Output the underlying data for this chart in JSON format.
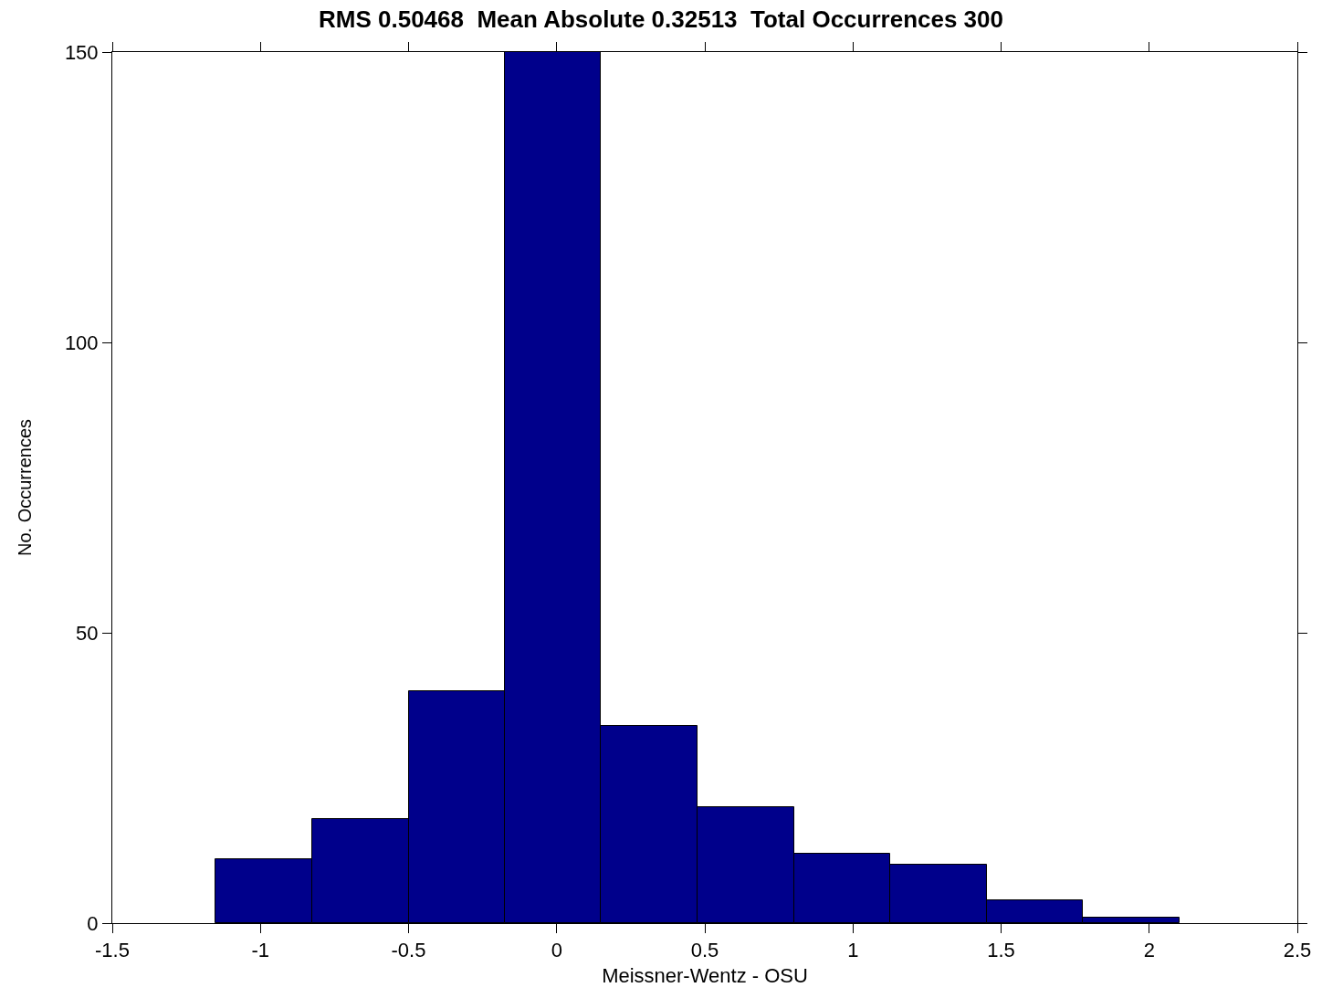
{
  "chart_data": {
    "type": "histogram",
    "title": "RMS 0.50468  Mean Absolute 0.32513  Total Occurrences 300",
    "xlabel": "Meissner-Wentz - OSU",
    "ylabel": "No. Occurrences",
    "bins": [
      -1.151,
      -0.826,
      -0.5,
      -0.175,
      0.15,
      0.475,
      0.801,
      1.126,
      1.451,
      1.777,
      2.102
    ],
    "values": [
      11,
      18,
      40,
      150,
      34,
      20,
      12,
      10,
      4,
      1
    ],
    "color": "#00008b",
    "xlim": [
      -1.5,
      2.5
    ],
    "xticks": [
      -1.5,
      -1,
      -0.5,
      0,
      0.5,
      1,
      1.5,
      2,
      2.5
    ],
    "ylim": [
      0,
      150
    ],
    "yticks": [
      0,
      50,
      100,
      150
    ]
  }
}
